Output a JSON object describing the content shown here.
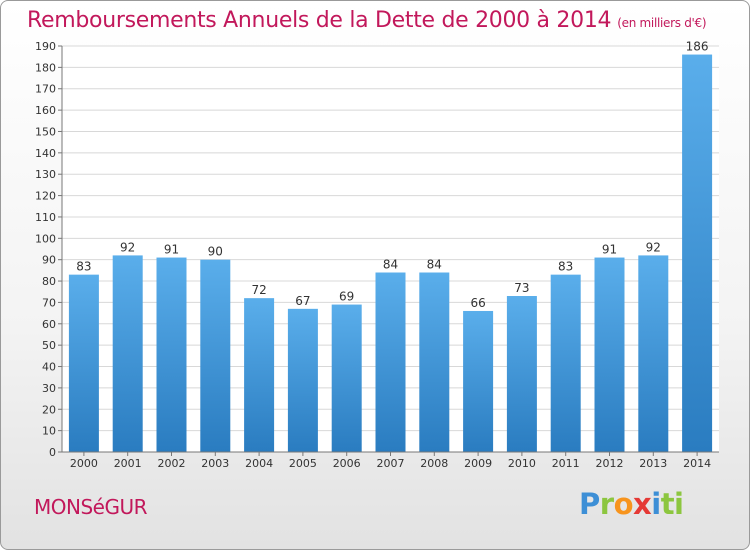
{
  "header": {
    "title": "Remboursements Annuels de la Dette de 2000 à 2014",
    "subtitle": "(en milliers d'€)"
  },
  "footer": {
    "city": "MONSéGUR",
    "logo": [
      "P",
      "r",
      "o",
      "x",
      "i",
      "ti"
    ]
  },
  "colors": {
    "title": "#c2185b",
    "bar_light": "#5aaeeb",
    "bar_dark": "#2a7cc0"
  },
  "chart_data": {
    "type": "bar",
    "title": "Remboursements Annuels de la Dette de 2000 à 2014",
    "categories": [
      "2000",
      "2001",
      "2002",
      "2003",
      "2004",
      "2005",
      "2006",
      "2007",
      "2008",
      "2009",
      "2010",
      "2011",
      "2012",
      "2013",
      "2014"
    ],
    "values": [
      83,
      92,
      91,
      90,
      72,
      67,
      69,
      84,
      84,
      66,
      73,
      83,
      91,
      92,
      186
    ],
    "ylim": [
      0,
      190
    ],
    "ytick_step": 10,
    "grid": true,
    "xlabel": "",
    "ylabel": ""
  }
}
